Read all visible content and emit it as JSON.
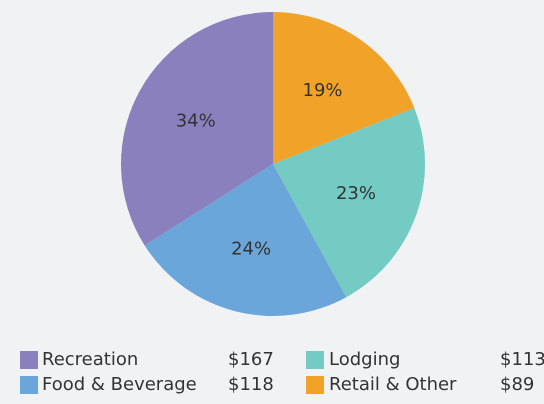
{
  "chart_data": {
    "type": "pie",
    "categories": [
      "Retail & Other",
      "Lodging",
      "Food & Beverage",
      "Recreation"
    ],
    "values": [
      19,
      23,
      24,
      34
    ],
    "value_labels": [
      "19%",
      "23%",
      "24%",
      "34%"
    ],
    "colors": [
      "#f0a328",
      "#73cbc3",
      "#6ba6da",
      "#8980bd"
    ],
    "amounts": [
      "$89",
      "$113",
      "$118",
      "$167"
    ]
  }
}
